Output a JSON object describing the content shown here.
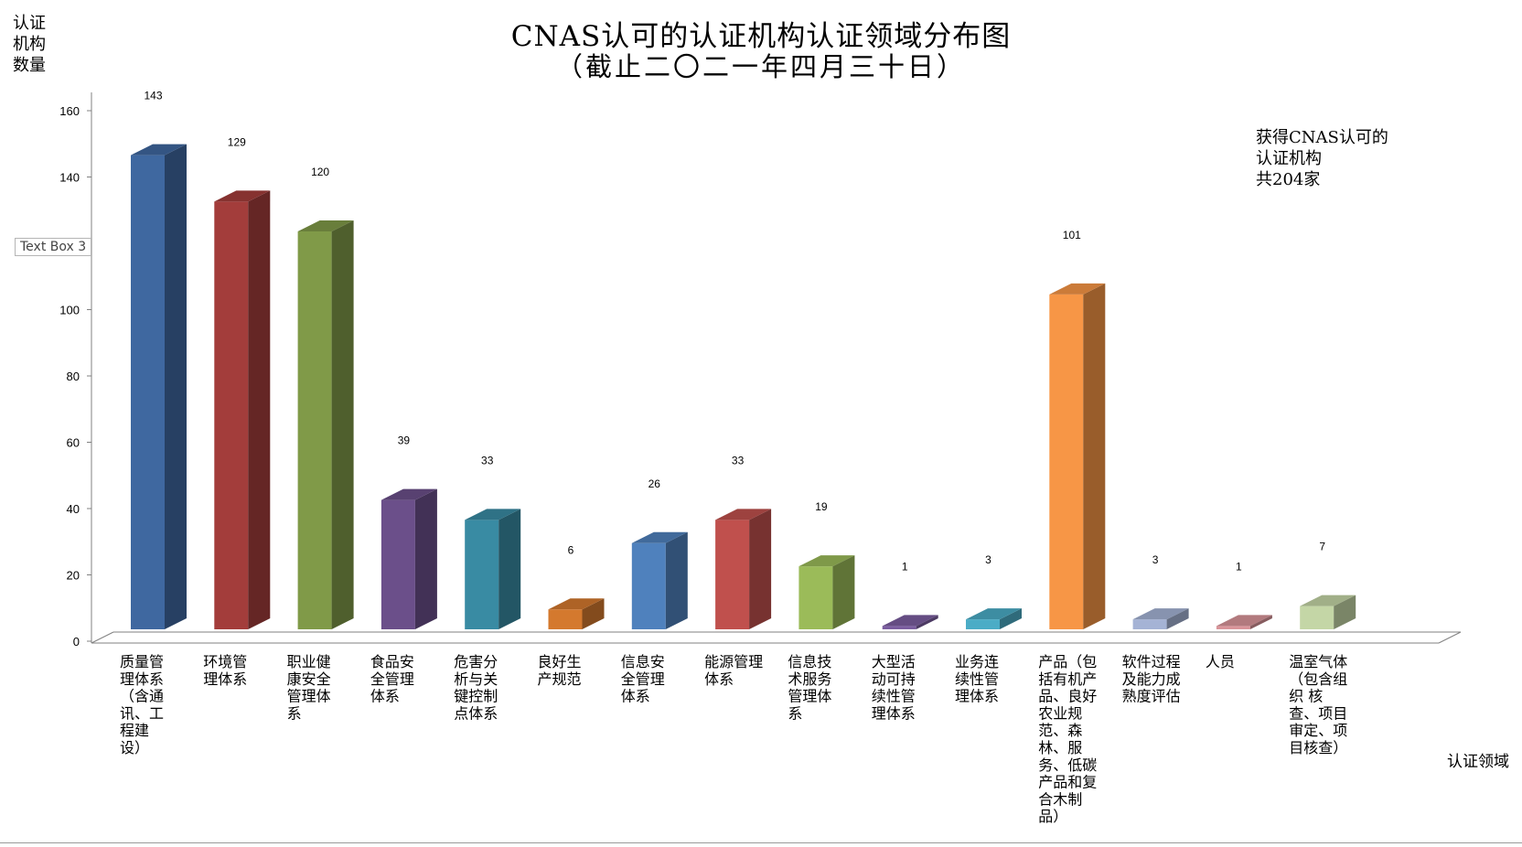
{
  "title_line1": "CNAS认可的认证机构认证领域分布图",
  "title_line2": "（截止二〇二一年四月三十日）",
  "y_axis_label": "认证\n机构\n数量",
  "x_axis_label": "认证领域",
  "note": "获得CNAS认可的\n认证机构\n共204家",
  "text_box_label": "Text Box 3",
  "chart_data": {
    "type": "bar",
    "title": "CNAS认可的认证机构认证领域分布图",
    "subtitle": "（截止二〇二一年四月三十日）",
    "xlabel": "认证领域",
    "ylabel": "认证机构数量",
    "ylim": [
      0,
      160
    ],
    "yticks": [
      0,
      20,
      40,
      60,
      80,
      100,
      120,
      140,
      160
    ],
    "grid": false,
    "categories": [
      "质量管理体系（含通讯、工程建设）",
      "环境管理体系",
      "职业健康安全管理体系",
      "食品安全管理体系",
      "危害分析与关键控制点体系",
      "良好生产规范",
      "信息安全管理体系",
      "能源管理体系",
      "信息技术服务管理体系",
      "大型活动可持续性管理体系",
      "业务连续性管理体系",
      "产品（包括有机产品、良好农业规范、森林、服务、低碳产品和复合木制品）",
      "软件过程及能力成熟度评估",
      "人员",
      "温室气体（包含组织核查、项目审定、项目核查）"
    ],
    "category_lines": [
      [
        "质量管",
        "理体系",
        "（含通",
        "讯、工",
        "程建",
        "设）"
      ],
      [
        "环境管",
        "理体系"
      ],
      [
        "职业健",
        "康安全",
        "管理体",
        "系"
      ],
      [
        "食品安",
        "全管理",
        "体系"
      ],
      [
        "危害分",
        "析与关",
        "键控制",
        "点体系"
      ],
      [
        "良好生",
        "产规范"
      ],
      [
        "信息安",
        "全管理",
        "体系"
      ],
      [
        "能源管理",
        "体系"
      ],
      [
        "信息技",
        "术服务",
        "管理体",
        "系"
      ],
      [
        "大型活",
        "动可持",
        "续性管",
        "理体系"
      ],
      [
        "业务连",
        "续性管",
        "理体系"
      ],
      [
        "产品（包",
        "括有机产",
        "品、良好",
        "农业规",
        "范、森",
        "林、服",
        "务、低碳",
        "产品和复",
        "合木制",
        "品）"
      ],
      [
        "软件过程",
        "及能力成",
        "熟度评估"
      ],
      [
        "人员"
      ],
      [
        "温室气体",
        "（包含组",
        "织 核",
        "查、项目",
        "审定、项",
        "目核查）"
      ]
    ],
    "values": [
      143,
      129,
      120,
      39,
      33,
      6,
      26,
      33,
      19,
      1,
      3,
      101,
      3,
      1,
      7
    ],
    "colors": [
      "#3F68A0",
      "#A33D3B",
      "#809A48",
      "#6B4F8A",
      "#398BA3",
      "#D4792E",
      "#4F81BD",
      "#C0504D",
      "#9BBB59",
      "#7B5EA0",
      "#4BACC6",
      "#F79646",
      "#A5B3D5",
      "#D9959A",
      "#C4D6A6"
    ]
  }
}
